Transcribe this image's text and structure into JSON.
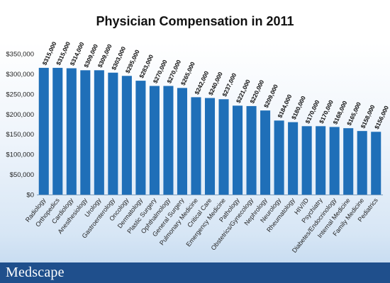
{
  "chart_data": {
    "type": "bar",
    "title": "Physician Compensation in 2011",
    "xlabel": "",
    "ylabel": "",
    "ylim": [
      0,
      350000
    ],
    "yticks": [
      "$0",
      "$50,000",
      "$100,000",
      "$150,000",
      "$200,000",
      "$250,000",
      "$300,000",
      "$350,000"
    ],
    "grid": false,
    "bar_color": "#1f6fb8",
    "categories": [
      "Radiology",
      "Orthopedics",
      "Cardiology",
      "Anesthesiology",
      "Urology",
      "Gastroenterology",
      "Oncology",
      "Dermatology",
      "Plastic Surgery",
      "Ophthalmology",
      "General Surgery",
      "Pulmonary Medicine",
      "Critical Care",
      "Emergency Medicine",
      "Pathology",
      "Obstetrics/Gynecology",
      "Nephrology",
      "Neurology",
      "Rheumatology",
      "HIV/ID",
      "Psychiatry",
      "Diabetes/Endocrinology",
      "Internal Medicine",
      "Family Medicine",
      "Pediatrics"
    ],
    "values": [
      315000,
      315000,
      314000,
      309000,
      309000,
      303000,
      295000,
      283000,
      270000,
      270000,
      265000,
      242000,
      240000,
      237000,
      221000,
      220000,
      209000,
      184000,
      180000,
      170000,
      170000,
      168000,
      165000,
      158000,
      156000
    ],
    "data_labels": [
      "$315,000",
      "$315,000",
      "$314,000",
      "$309,000",
      "$309,000",
      "$303,000",
      "$295,000",
      "$283,000",
      "$270,000",
      "$270,000",
      "$265,000",
      "$242,000",
      "$240,000",
      "$237,000",
      "$221,000",
      "$220,000",
      "$209,000",
      "$184,000",
      "$180,000",
      "$170,000",
      "$170,000",
      "$168,000",
      "$165,000",
      "$158,000",
      "$156,000"
    ]
  },
  "footer": {
    "brand": "Medscape"
  }
}
